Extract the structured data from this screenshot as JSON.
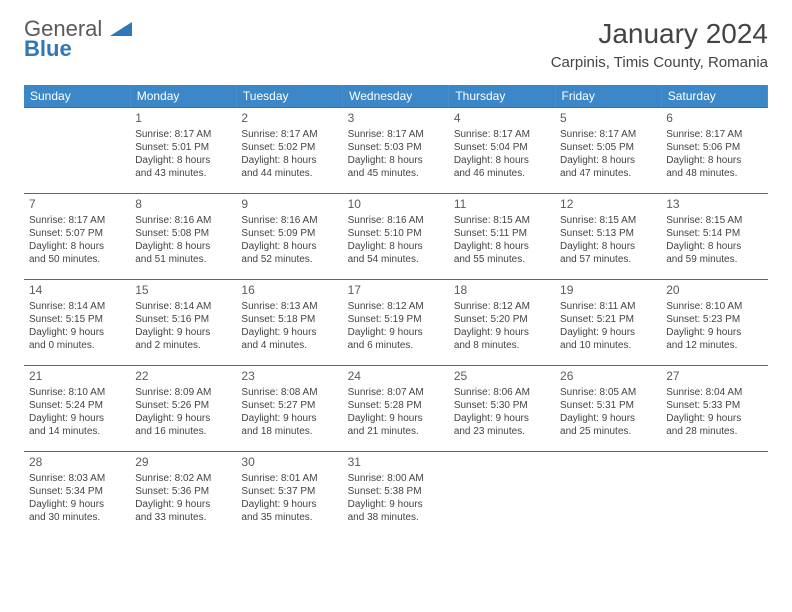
{
  "brand": {
    "part1": "General",
    "part2": "Blue"
  },
  "title": "January 2024",
  "subtitle": "Carpinis, Timis County, Romania",
  "colors": {
    "header_bg": "#3b87c8",
    "header_text": "#ffffff",
    "row_border": "#3b6f9a",
    "body_text": "#444444",
    "brand_blue": "#2f78b8"
  },
  "weekdays": [
    "Sunday",
    "Monday",
    "Tuesday",
    "Wednesday",
    "Thursday",
    "Friday",
    "Saturday"
  ],
  "weeks": [
    [
      null,
      {
        "n": "1",
        "sr": "Sunrise: 8:17 AM",
        "ss": "Sunset: 5:01 PM",
        "d1": "Daylight: 8 hours",
        "d2": "and 43 minutes."
      },
      {
        "n": "2",
        "sr": "Sunrise: 8:17 AM",
        "ss": "Sunset: 5:02 PM",
        "d1": "Daylight: 8 hours",
        "d2": "and 44 minutes."
      },
      {
        "n": "3",
        "sr": "Sunrise: 8:17 AM",
        "ss": "Sunset: 5:03 PM",
        "d1": "Daylight: 8 hours",
        "d2": "and 45 minutes."
      },
      {
        "n": "4",
        "sr": "Sunrise: 8:17 AM",
        "ss": "Sunset: 5:04 PM",
        "d1": "Daylight: 8 hours",
        "d2": "and 46 minutes."
      },
      {
        "n": "5",
        "sr": "Sunrise: 8:17 AM",
        "ss": "Sunset: 5:05 PM",
        "d1": "Daylight: 8 hours",
        "d2": "and 47 minutes."
      },
      {
        "n": "6",
        "sr": "Sunrise: 8:17 AM",
        "ss": "Sunset: 5:06 PM",
        "d1": "Daylight: 8 hours",
        "d2": "and 48 minutes."
      }
    ],
    [
      {
        "n": "7",
        "sr": "Sunrise: 8:17 AM",
        "ss": "Sunset: 5:07 PM",
        "d1": "Daylight: 8 hours",
        "d2": "and 50 minutes."
      },
      {
        "n": "8",
        "sr": "Sunrise: 8:16 AM",
        "ss": "Sunset: 5:08 PM",
        "d1": "Daylight: 8 hours",
        "d2": "and 51 minutes."
      },
      {
        "n": "9",
        "sr": "Sunrise: 8:16 AM",
        "ss": "Sunset: 5:09 PM",
        "d1": "Daylight: 8 hours",
        "d2": "and 52 minutes."
      },
      {
        "n": "10",
        "sr": "Sunrise: 8:16 AM",
        "ss": "Sunset: 5:10 PM",
        "d1": "Daylight: 8 hours",
        "d2": "and 54 minutes."
      },
      {
        "n": "11",
        "sr": "Sunrise: 8:15 AM",
        "ss": "Sunset: 5:11 PM",
        "d1": "Daylight: 8 hours",
        "d2": "and 55 minutes."
      },
      {
        "n": "12",
        "sr": "Sunrise: 8:15 AM",
        "ss": "Sunset: 5:13 PM",
        "d1": "Daylight: 8 hours",
        "d2": "and 57 minutes."
      },
      {
        "n": "13",
        "sr": "Sunrise: 8:15 AM",
        "ss": "Sunset: 5:14 PM",
        "d1": "Daylight: 8 hours",
        "d2": "and 59 minutes."
      }
    ],
    [
      {
        "n": "14",
        "sr": "Sunrise: 8:14 AM",
        "ss": "Sunset: 5:15 PM",
        "d1": "Daylight: 9 hours",
        "d2": "and 0 minutes."
      },
      {
        "n": "15",
        "sr": "Sunrise: 8:14 AM",
        "ss": "Sunset: 5:16 PM",
        "d1": "Daylight: 9 hours",
        "d2": "and 2 minutes."
      },
      {
        "n": "16",
        "sr": "Sunrise: 8:13 AM",
        "ss": "Sunset: 5:18 PM",
        "d1": "Daylight: 9 hours",
        "d2": "and 4 minutes."
      },
      {
        "n": "17",
        "sr": "Sunrise: 8:12 AM",
        "ss": "Sunset: 5:19 PM",
        "d1": "Daylight: 9 hours",
        "d2": "and 6 minutes."
      },
      {
        "n": "18",
        "sr": "Sunrise: 8:12 AM",
        "ss": "Sunset: 5:20 PM",
        "d1": "Daylight: 9 hours",
        "d2": "and 8 minutes."
      },
      {
        "n": "19",
        "sr": "Sunrise: 8:11 AM",
        "ss": "Sunset: 5:21 PM",
        "d1": "Daylight: 9 hours",
        "d2": "and 10 minutes."
      },
      {
        "n": "20",
        "sr": "Sunrise: 8:10 AM",
        "ss": "Sunset: 5:23 PM",
        "d1": "Daylight: 9 hours",
        "d2": "and 12 minutes."
      }
    ],
    [
      {
        "n": "21",
        "sr": "Sunrise: 8:10 AM",
        "ss": "Sunset: 5:24 PM",
        "d1": "Daylight: 9 hours",
        "d2": "and 14 minutes."
      },
      {
        "n": "22",
        "sr": "Sunrise: 8:09 AM",
        "ss": "Sunset: 5:26 PM",
        "d1": "Daylight: 9 hours",
        "d2": "and 16 minutes."
      },
      {
        "n": "23",
        "sr": "Sunrise: 8:08 AM",
        "ss": "Sunset: 5:27 PM",
        "d1": "Daylight: 9 hours",
        "d2": "and 18 minutes."
      },
      {
        "n": "24",
        "sr": "Sunrise: 8:07 AM",
        "ss": "Sunset: 5:28 PM",
        "d1": "Daylight: 9 hours",
        "d2": "and 21 minutes."
      },
      {
        "n": "25",
        "sr": "Sunrise: 8:06 AM",
        "ss": "Sunset: 5:30 PM",
        "d1": "Daylight: 9 hours",
        "d2": "and 23 minutes."
      },
      {
        "n": "26",
        "sr": "Sunrise: 8:05 AM",
        "ss": "Sunset: 5:31 PM",
        "d1": "Daylight: 9 hours",
        "d2": "and 25 minutes."
      },
      {
        "n": "27",
        "sr": "Sunrise: 8:04 AM",
        "ss": "Sunset: 5:33 PM",
        "d1": "Daylight: 9 hours",
        "d2": "and 28 minutes."
      }
    ],
    [
      {
        "n": "28",
        "sr": "Sunrise: 8:03 AM",
        "ss": "Sunset: 5:34 PM",
        "d1": "Daylight: 9 hours",
        "d2": "and 30 minutes."
      },
      {
        "n": "29",
        "sr": "Sunrise: 8:02 AM",
        "ss": "Sunset: 5:36 PM",
        "d1": "Daylight: 9 hours",
        "d2": "and 33 minutes."
      },
      {
        "n": "30",
        "sr": "Sunrise: 8:01 AM",
        "ss": "Sunset: 5:37 PM",
        "d1": "Daylight: 9 hours",
        "d2": "and 35 minutes."
      },
      {
        "n": "31",
        "sr": "Sunrise: 8:00 AM",
        "ss": "Sunset: 5:38 PM",
        "d1": "Daylight: 9 hours",
        "d2": "and 38 minutes."
      },
      null,
      null,
      null
    ]
  ]
}
